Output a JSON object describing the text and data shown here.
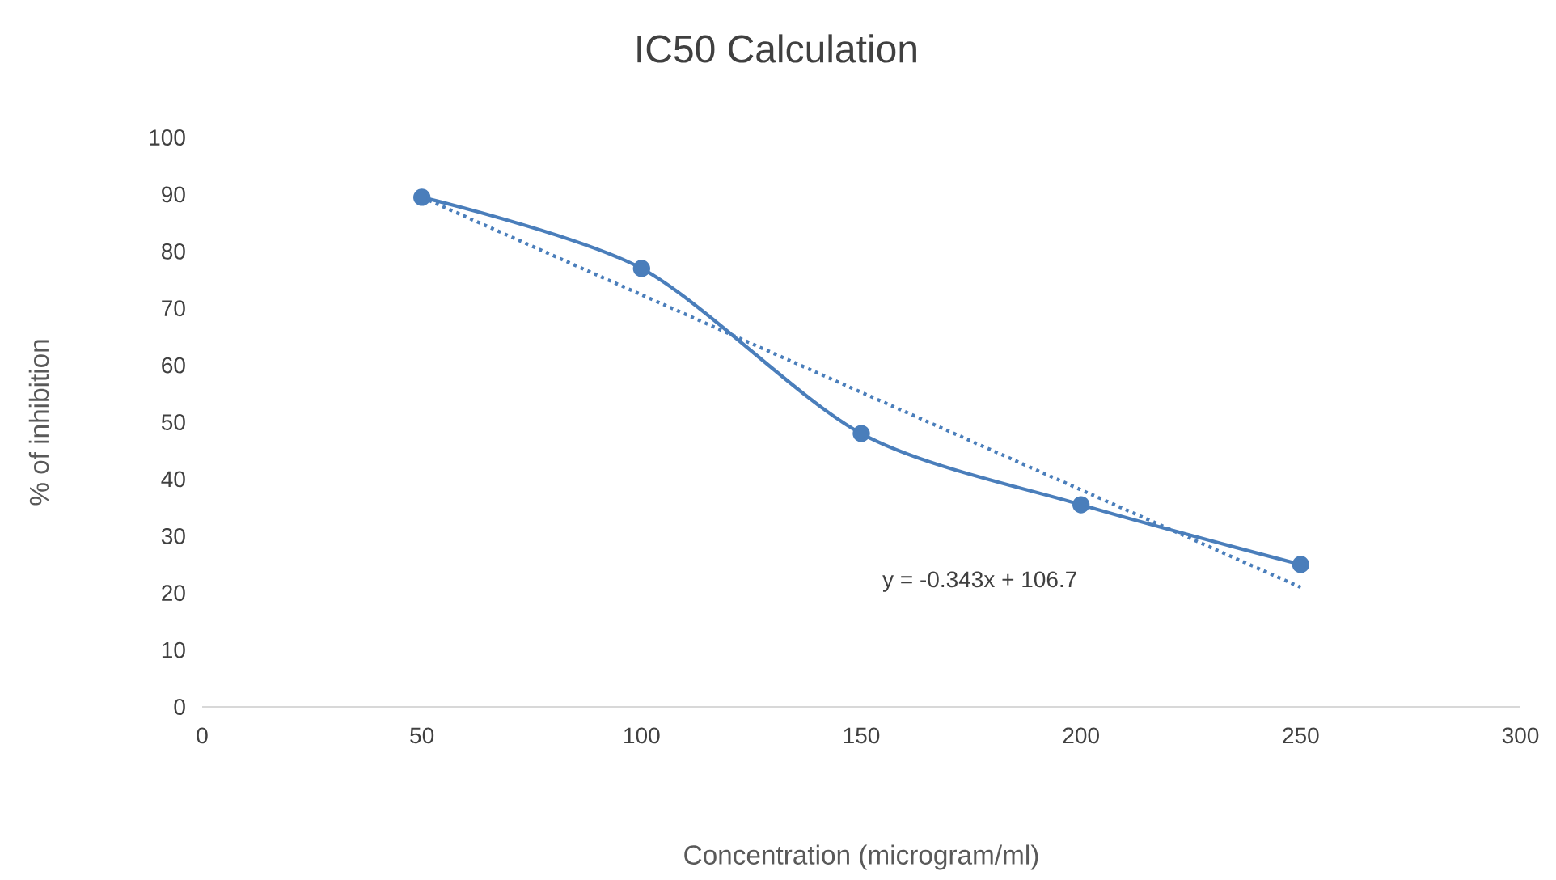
{
  "chart_data": {
    "type": "line",
    "title": "IC50 Calculation",
    "xlabel": "Concentration (microgram/ml)",
    "ylabel": "% of inhibition",
    "series": [
      {
        "x": [
          50,
          100,
          150,
          200,
          250
        ],
        "values": [
          89.5,
          77,
          48,
          35.5,
          25
        ],
        "color": "#4a7ebb",
        "marker": "circle",
        "line_style": "solid"
      },
      {
        "type": "line",
        "x": [
          50,
          250
        ],
        "values": [
          89.5,
          21
        ],
        "color": "#4a7ebb",
        "marker": "none",
        "line_style": "dotted"
      }
    ],
    "annotations": [
      "y = -0.343x + 106.7"
    ],
    "xlim": [
      0,
      300
    ],
    "xticks": [
      0,
      50,
      100,
      150,
      200,
      250,
      300
    ],
    "ylim": [
      0,
      100
    ],
    "yticks": [
      0,
      10,
      20,
      30,
      40,
      50,
      60,
      70,
      80,
      90,
      100
    ]
  }
}
